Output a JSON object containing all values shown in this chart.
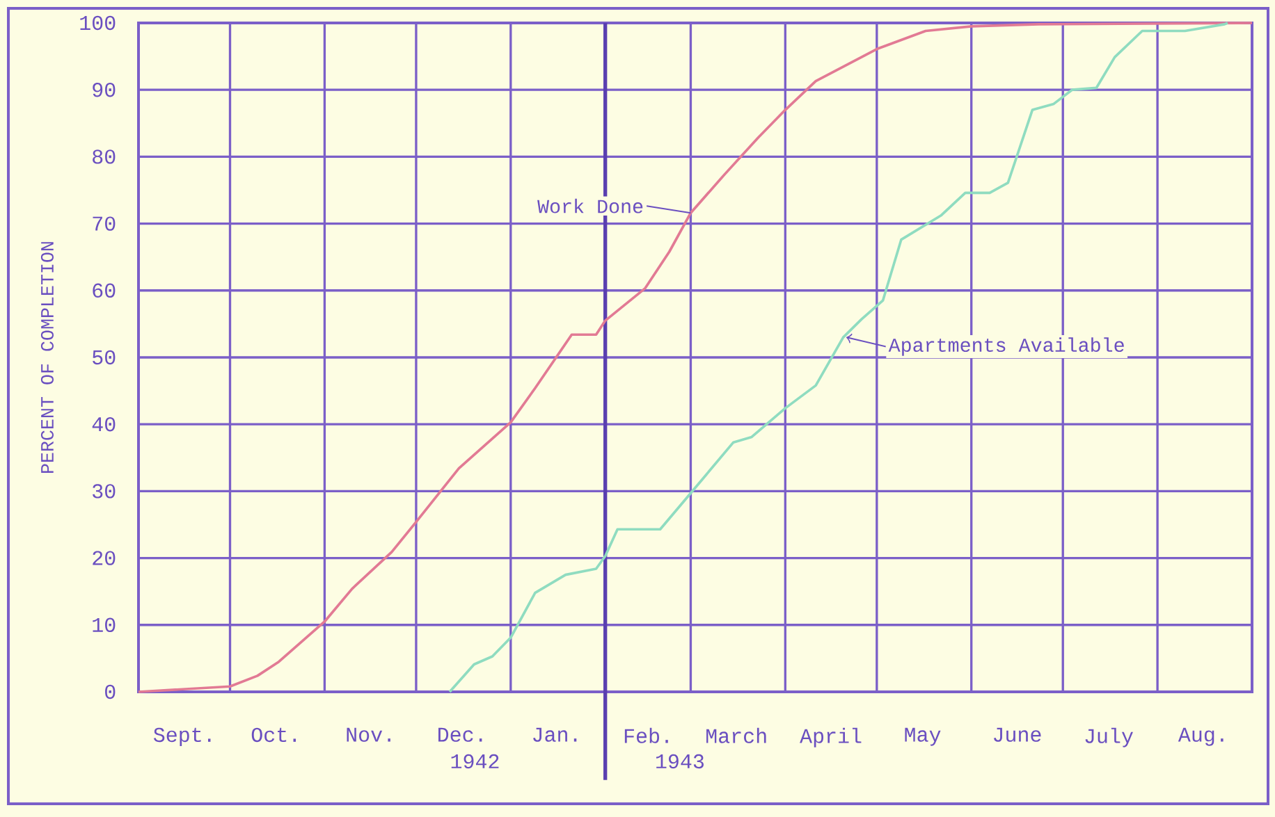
{
  "chart_data": {
    "type": "line",
    "ylabel": "PERCENT OF COMPLETION",
    "xlim": [
      "1942-09-01",
      "1943-09-01"
    ],
    "ylim": [
      0,
      100
    ],
    "xticks": [
      {
        "value": "1942-09-01",
        "label": null
      },
      {
        "value": "1942-10-01",
        "label": null
      },
      {
        "value": "1942-11-01",
        "label": null
      },
      {
        "value": "1942-12-01",
        "label": null
      },
      {
        "value": "1943-01-01",
        "label": null
      },
      {
        "value": "1943-02-01",
        "label": null
      },
      {
        "value": "1943-03-01",
        "label": null
      },
      {
        "value": "1943-04-01",
        "label": null
      },
      {
        "value": "1943-05-01",
        "label": null
      },
      {
        "value": "1943-06-01",
        "label": null
      },
      {
        "value": "1943-07-01",
        "label": null
      },
      {
        "value": "1943-08-01",
        "label": null
      },
      {
        "value": "1943-09-01",
        "label": null
      },
      {
        "value": "1942-09-16",
        "label": "Sept."
      },
      {
        "value": "1942-10-16",
        "label": "Oct."
      },
      {
        "value": "1942-11-16",
        "label": "Nov."
      },
      {
        "value": "1942-12-16",
        "label": "Dec."
      },
      {
        "value": "1943-01-16",
        "label": "Jan."
      },
      {
        "value": "1943-02-15",
        "label": "Feb."
      },
      {
        "value": "1943-03-16",
        "label": "March"
      },
      {
        "value": "1943-04-16",
        "label": "April"
      },
      {
        "value": "1943-05-16",
        "label": "May"
      },
      {
        "value": "1943-06-16",
        "label": "June"
      },
      {
        "value": "1943-07-16",
        "label": "July"
      },
      {
        "value": "1943-08-16",
        "label": "Aug."
      }
    ],
    "yticks": [
      0,
      10,
      20,
      30,
      40,
      50,
      60,
      70,
      80,
      90,
      100
    ],
    "grid": true,
    "marker": "none",
    "line_style": "solid",
    "ref_lines": [
      {
        "axis": "x",
        "value": "1943-02-01",
        "color": "#5a3fb0"
      }
    ],
    "annotations": [
      {
        "text": "Work Done",
        "x": "1943-03-01",
        "y": 71.6
      },
      {
        "text": "Apartments Available",
        "x": "1943-04-21",
        "y": 53
      },
      "1942",
      "1943"
    ],
    "series": [
      {
        "color": "#e27a94",
        "x": [
          "1942-09-01",
          "1942-10-01",
          "1942-10-10",
          "1942-10-17",
          "1942-11-01",
          "1942-11-10",
          "1942-11-23",
          "1942-12-01",
          "1942-12-15",
          "1943-01-01",
          "1943-01-09",
          "1943-01-21",
          "1943-01-29",
          "1943-02-01",
          "1943-02-14",
          "1943-02-22",
          "1943-03-01",
          "1943-03-12",
          "1943-03-23",
          "1943-04-01",
          "1943-04-11",
          "1943-05-01",
          "1943-05-17",
          "1943-06-01",
          "1943-06-23",
          "1943-09-01"
        ],
        "values": [
          0,
          0.8,
          2.4,
          4.5,
          10.5,
          15.4,
          20.9,
          25.4,
          33.4,
          40.3,
          45.4,
          53.4,
          53.4,
          55.5,
          60.3,
          65.8,
          71.6,
          77.3,
          82.8,
          87.0,
          91.3,
          96.1,
          98.8,
          99.5,
          99.8,
          100
        ]
      },
      {
        "color": "#8fdcc0",
        "x": [
          "1942-12-12",
          "1942-12-20",
          "1942-12-26",
          "1943-01-01",
          "1943-01-09",
          "1943-01-19",
          "1943-01-29",
          "1943-02-01",
          "1943-02-05",
          "1943-02-19",
          "1943-03-01",
          "1943-03-15",
          "1943-03-21",
          "1943-04-01",
          "1943-04-11",
          "1943-04-20",
          "1943-04-26",
          "1943-05-03",
          "1943-05-09",
          "1943-05-22",
          "1943-05-30",
          "1943-06-07",
          "1943-06-13",
          "1943-06-21",
          "1943-06-28",
          "1943-07-04",
          "1943-07-12",
          "1943-07-18",
          "1943-07-27",
          "1943-08-10",
          "1943-08-23",
          "1943-08-24"
        ],
        "values": [
          0,
          4.1,
          5.3,
          8.1,
          14.8,
          17.5,
          18.4,
          20.3,
          24.3,
          24.3,
          29.7,
          37.3,
          38.1,
          42.4,
          45.8,
          53.0,
          55.7,
          58.5,
          67.6,
          71.2,
          74.6,
          74.6,
          76.1,
          87.0,
          87.9,
          90.0,
          90.3,
          94.9,
          98.8,
          98.8,
          99.8,
          100
        ]
      }
    ]
  }
}
